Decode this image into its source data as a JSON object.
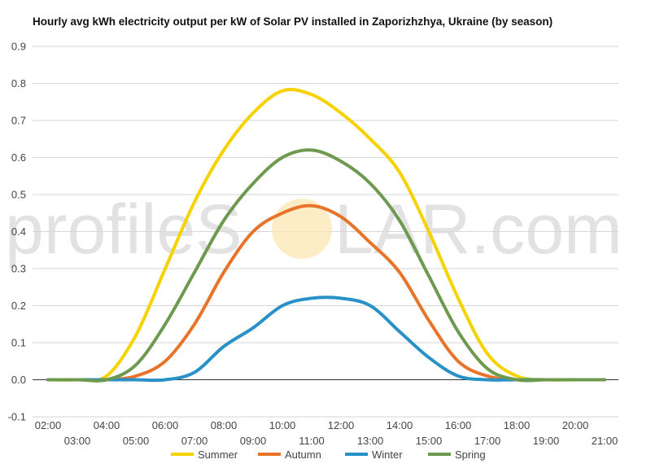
{
  "chart_data": {
    "type": "line",
    "title": "Hourly avg kWh electricity output per kW of Solar PV installed in Zaporizhzhya, Ukraine (by season)",
    "xlabel": "",
    "ylabel": "",
    "ylim": [
      -0.1,
      0.9
    ],
    "yticks": [
      "-0.1",
      "0.0",
      "0.1",
      "0.2",
      "0.3",
      "0.4",
      "0.5",
      "0.6",
      "0.7",
      "0.8",
      "0.9"
    ],
    "grid": true,
    "legend_position": "bottom",
    "x": [
      "02:00",
      "03:00",
      "04:00",
      "05:00",
      "06:00",
      "07:00",
      "08:00",
      "09:00",
      "10:00",
      "11:00",
      "12:00",
      "13:00",
      "14:00",
      "15:00",
      "16:00",
      "17:00",
      "18:00",
      "19:00",
      "20:00",
      "21:00"
    ],
    "series": [
      {
        "name": "Summer",
        "color": "#f5d200",
        "values": [
          0.0,
          0.0,
          0.01,
          0.12,
          0.3,
          0.48,
          0.62,
          0.72,
          0.78,
          0.77,
          0.72,
          0.65,
          0.56,
          0.4,
          0.22,
          0.07,
          0.01,
          0.0,
          0.0,
          0.0
        ]
      },
      {
        "name": "Autumn",
        "color": "#e8742a",
        "values": [
          0.0,
          0.0,
          0.0,
          0.01,
          0.05,
          0.15,
          0.29,
          0.4,
          0.45,
          0.47,
          0.44,
          0.37,
          0.29,
          0.16,
          0.05,
          0.01,
          0.0,
          0.0,
          0.0,
          0.0
        ]
      },
      {
        "name": "Winter",
        "color": "#2891c8",
        "values": [
          0.0,
          0.0,
          0.0,
          0.0,
          0.0,
          0.02,
          0.09,
          0.14,
          0.2,
          0.22,
          0.22,
          0.2,
          0.13,
          0.06,
          0.01,
          0.0,
          0.0,
          0.0,
          0.0,
          0.0
        ]
      },
      {
        "name": "Spring",
        "color": "#6e9a50",
        "values": [
          0.0,
          0.0,
          0.0,
          0.04,
          0.15,
          0.29,
          0.43,
          0.53,
          0.6,
          0.62,
          0.59,
          0.53,
          0.43,
          0.28,
          0.13,
          0.03,
          0.0,
          0.0,
          0.0,
          0.0
        ]
      }
    ]
  },
  "watermark": {
    "text_before": "profileS",
    "text_after": "LAR.com"
  }
}
